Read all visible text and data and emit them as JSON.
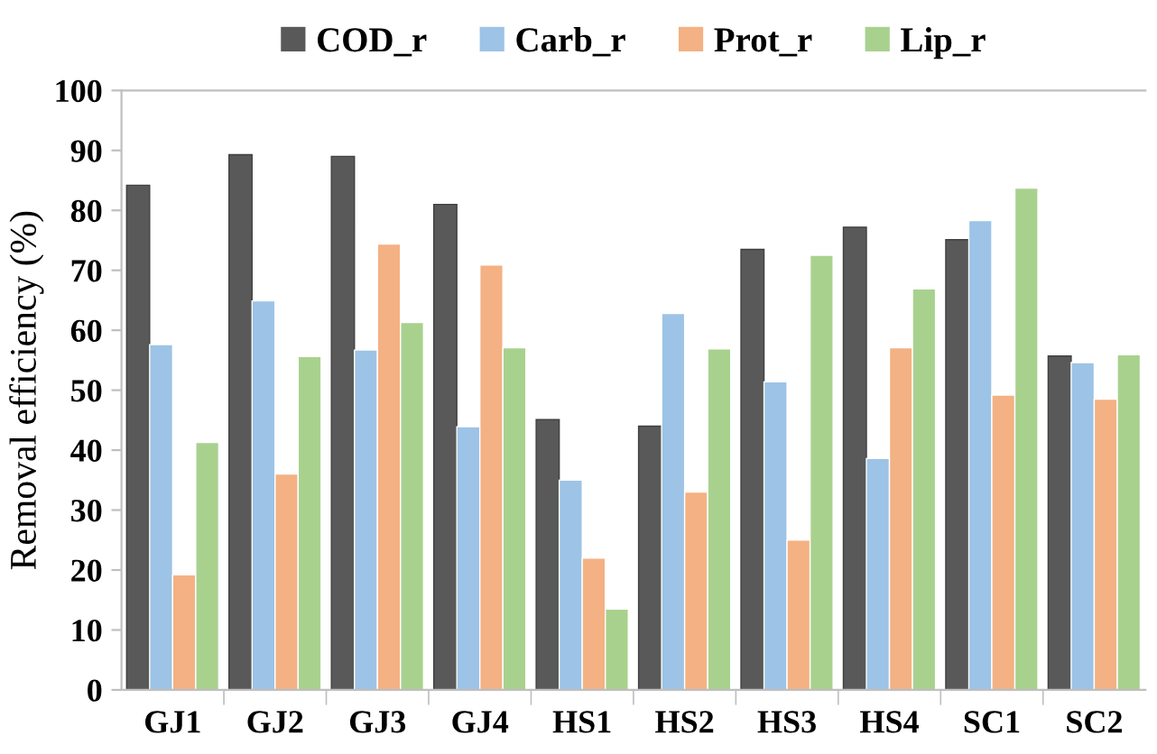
{
  "chart_data": {
    "type": "bar",
    "ylabel": "Removal efficiency (%)",
    "categories": [
      "GJ1",
      "GJ2",
      "GJ3",
      "GJ4",
      "HS1",
      "HS2",
      "HS3",
      "HS4",
      "SC1",
      "SC2"
    ],
    "series": [
      {
        "name": "COD_r",
        "color": "#595959",
        "values": [
          84.2,
          89.3,
          89.0,
          81.0,
          45.1,
          44.0,
          73.5,
          77.2,
          75.1,
          55.7
        ]
      },
      {
        "name": "Carb_r",
        "color": "#9dc3e6",
        "values": [
          57.6,
          64.9,
          56.7,
          43.9,
          35.0,
          62.8,
          51.4,
          38.6,
          78.3,
          54.6
        ]
      },
      {
        "name": "Prot_r",
        "color": "#f4b183",
        "values": [
          19.2,
          36.0,
          74.4,
          70.9,
          22.0,
          33.0,
          25.0,
          57.1,
          49.2,
          48.5
        ]
      },
      {
        "name": "Lip_r",
        "color": "#a9d18e",
        "values": [
          41.3,
          55.6,
          61.3,
          57.1,
          13.5,
          56.9,
          72.5,
          66.9,
          83.7,
          55.9
        ]
      }
    ],
    "ylim": [
      0,
      100
    ],
    "yticks": [
      0,
      10,
      20,
      30,
      40,
      50,
      60,
      70,
      80,
      90,
      100
    ],
    "grid": false,
    "legend": "top"
  }
}
